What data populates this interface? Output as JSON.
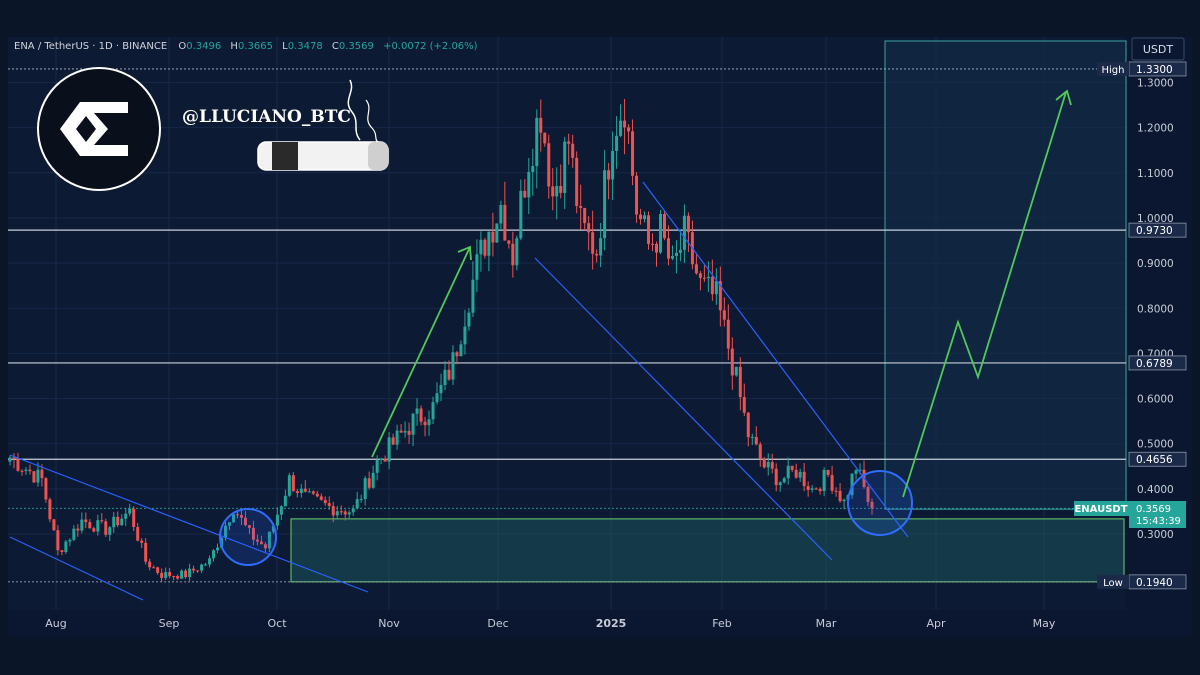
{
  "header": {
    "pair": "ENA / TetherUS · 1D · BINANCE",
    "o_label": "O",
    "o_value": "0.3496",
    "h_label": "H",
    "h_value": "0.3665",
    "l_label": "L",
    "l_value": "0.3478",
    "c_label": "C",
    "c_value": "0.3569",
    "change": "+0.0072 (+2.06%)"
  },
  "watermark": {
    "handle": "@LLUCIANO_BTC"
  },
  "axis": {
    "currency": "USDT"
  },
  "colors": {
    "background": "#0a1528",
    "up": "#26a69a",
    "down": "#ef5350",
    "channel": "#2962ff",
    "projection": "#4caf50",
    "support_zone": "#2a7f7a",
    "level_line": "#b0b8c8"
  },
  "chart_data": {
    "type": "candlestick",
    "title": "ENA / TetherUS · 1D · BINANCE",
    "ylim": [
      0.18,
      1.36
    ],
    "y_ticks": [
      "0.3000",
      "0.4000",
      "0.5000",
      "0.6000",
      "0.7000",
      "0.8000",
      "0.9000",
      "1.0000",
      "1.1000",
      "1.2000",
      "1.3000"
    ],
    "y_tick_values": [
      0.3,
      0.4,
      0.5,
      0.6,
      0.7,
      0.8,
      0.9,
      1.0,
      1.1,
      1.2,
      1.3
    ],
    "x_ticks": [
      "Aug",
      "Sep",
      "Oct",
      "Nov",
      "Dec",
      "2025",
      "Feb",
      "Mar",
      "Apr",
      "May"
    ],
    "last_price": {
      "symbol": "ENAUSDT",
      "value": "0.3569",
      "countdown": "15:43:39"
    },
    "levels": [
      {
        "label": "High",
        "value": "1.3300",
        "price": 1.33
      },
      {
        "label": "",
        "value": "0.9730",
        "price": 0.973
      },
      {
        "label": "",
        "value": "0.6789",
        "price": 0.6789
      },
      {
        "label": "",
        "value": "0.4656",
        "price": 0.4656
      },
      {
        "label": "Low",
        "value": "0.1940",
        "price": 0.194
      }
    ],
    "anchors": [
      [
        0,
        0.47
      ],
      [
        8,
        0.42
      ],
      [
        12,
        0.26
      ],
      [
        18,
        0.33
      ],
      [
        24,
        0.31
      ],
      [
        30,
        0.35
      ],
      [
        34,
        0.24
      ],
      [
        38,
        0.21
      ],
      [
        44,
        0.21
      ],
      [
        50,
        0.24
      ],
      [
        56,
        0.36
      ],
      [
        60,
        0.3
      ],
      [
        64,
        0.27
      ],
      [
        70,
        0.42
      ],
      [
        74,
        0.38
      ],
      [
        80,
        0.36
      ],
      [
        86,
        0.35
      ],
      [
        92,
        0.46
      ],
      [
        96,
        0.5
      ],
      [
        101,
        0.55
      ],
      [
        106,
        0.58
      ],
      [
        111,
        0.68
      ],
      [
        115,
        0.83
      ],
      [
        119,
        0.95
      ],
      [
        123,
        1.03
      ],
      [
        126,
        0.92
      ],
      [
        130,
        1.14
      ],
      [
        133,
        1.24
      ],
      [
        136,
        1.05
      ],
      [
        140,
        1.17
      ],
      [
        143,
        0.98
      ],
      [
        147,
        0.93
      ],
      [
        151,
        1.2
      ],
      [
        154,
        1.26
      ],
      [
        157,
        1.02
      ],
      [
        160,
        0.94
      ],
      [
        163,
        0.97
      ],
      [
        166,
        0.88
      ],
      [
        169,
        0.96
      ],
      [
        173,
        0.85
      ],
      [
        177,
        0.82
      ],
      [
        181,
        0.68
      ],
      [
        185,
        0.52
      ],
      [
        189,
        0.45
      ],
      [
        193,
        0.42
      ],
      [
        197,
        0.44
      ],
      [
        201,
        0.4
      ],
      [
        205,
        0.43
      ],
      [
        209,
        0.37
      ],
      [
        212,
        0.45
      ],
      [
        216,
        0.35
      ]
    ]
  }
}
